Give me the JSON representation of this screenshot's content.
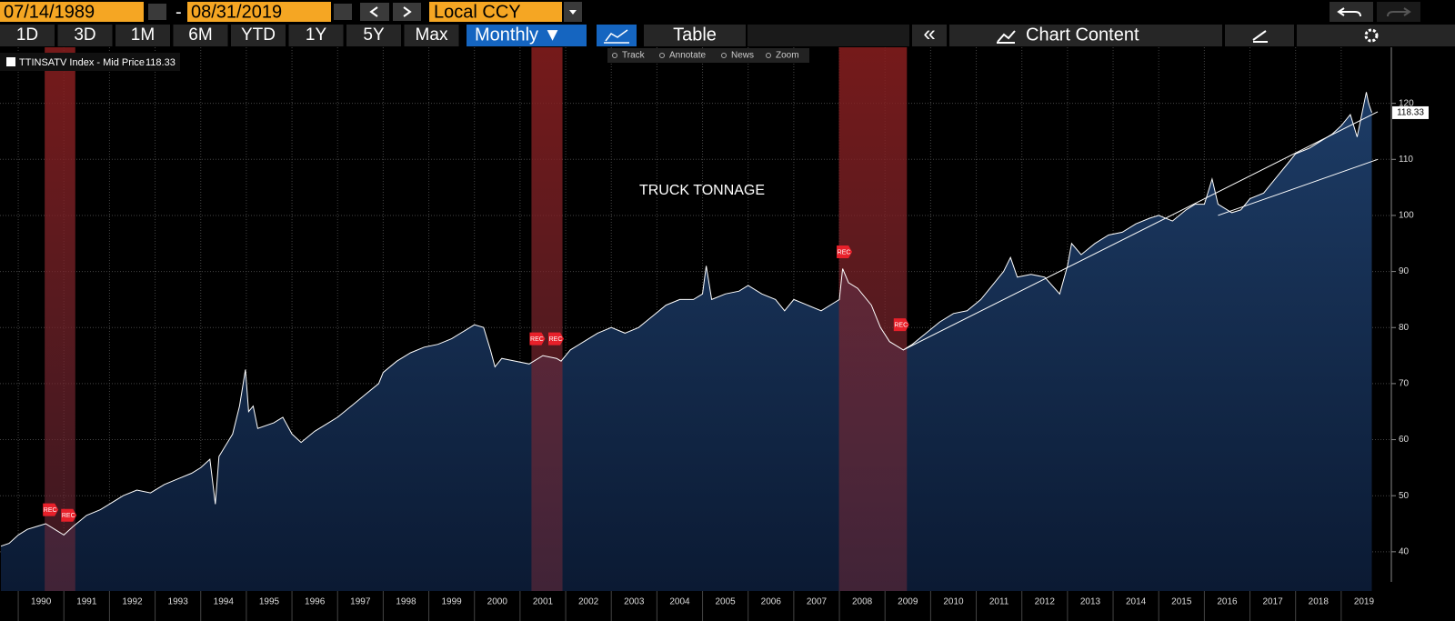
{
  "toolbar": {
    "start_date": "07/14/1989",
    "separator": "-",
    "end_date": "08/31/2019",
    "currency": "Local CCY",
    "ranges": [
      "1D",
      "3D",
      "1M",
      "6M",
      "YTD",
      "1Y",
      "5Y",
      "Max"
    ],
    "frequency": "Monthly ▼",
    "table": "Table",
    "collapse": "«",
    "chart_content": "Chart Content"
  },
  "chart_tools": [
    "Track",
    "Annotate",
    "News",
    "Zoom"
  ],
  "chart_data": {
    "type": "area",
    "title": "TRUCK TONNAGE",
    "x": [
      1989.62,
      1989.8,
      1990.0,
      1990.2,
      1990.4,
      1990.6,
      1990.8,
      1991.0,
      1991.2,
      1991.5,
      1991.8,
      1992.0,
      1992.3,
      1992.6,
      1992.9,
      1993.2,
      1993.5,
      1993.8,
      1994.0,
      1994.2,
      1994.32,
      1994.4,
      1994.7,
      1994.85,
      1994.98,
      1995.05,
      1995.15,
      1995.25,
      1995.6,
      1995.8,
      1996.0,
      1996.2,
      1996.5,
      1996.8,
      1997.0,
      1997.3,
      1997.6,
      1997.9,
      1998.0,
      1998.3,
      1998.6,
      1998.9,
      1999.2,
      1999.5,
      1999.8,
      2000.0,
      2000.2,
      2000.35,
      2000.45,
      2000.6,
      2000.9,
      2001.2,
      2001.5,
      2001.8,
      2001.9,
      2002.1,
      2002.4,
      2002.7,
      2003.0,
      2003.3,
      2003.6,
      2003.9,
      2004.2,
      2004.5,
      2004.8,
      2005.0,
      2005.08,
      2005.2,
      2005.5,
      2005.8,
      2006.0,
      2006.3,
      2006.6,
      2006.8,
      2007.0,
      2007.3,
      2007.6,
      2007.9,
      2008.0,
      2008.07,
      2008.2,
      2008.4,
      2008.7,
      2008.9,
      2009.1,
      2009.4,
      2009.6,
      2009.9,
      2010.2,
      2010.5,
      2010.8,
      2011.1,
      2011.4,
      2011.6,
      2011.75,
      2011.9,
      2012.2,
      2012.5,
      2012.83,
      2013.0,
      2013.09,
      2013.3,
      2013.6,
      2013.9,
      2014.2,
      2014.5,
      2014.8,
      2015.0,
      2015.3,
      2015.6,
      2015.8,
      2016.0,
      2016.17,
      2016.3,
      2016.6,
      2016.8,
      2017.0,
      2017.3,
      2017.6,
      2017.8,
      2018.0,
      2018.3,
      2018.6,
      2018.8,
      2019.0,
      2019.2,
      2019.35,
      2019.55,
      2019.6,
      2019.67
    ],
    "series": [
      {
        "name": "TTINSATV Index - Mid Price",
        "color": "#ffffff",
        "values": [
          41,
          41.5,
          43,
          44,
          44.5,
          45,
          44,
          43,
          44.5,
          46.5,
          47.5,
          48.5,
          50,
          51,
          50.5,
          52,
          53,
          54,
          55,
          56.5,
          48.5,
          57,
          61,
          66,
          72.5,
          65,
          66,
          62,
          63,
          64,
          61,
          59.5,
          61.5,
          63,
          64,
          66,
          68,
          70,
          72,
          74,
          75.5,
          76.5,
          77,
          78,
          79.5,
          80.5,
          80,
          76,
          73,
          74.5,
          74,
          73.5,
          75,
          74.5,
          74,
          76,
          77.5,
          79,
          80,
          79,
          80,
          82,
          84,
          85,
          85,
          86,
          91,
          85,
          86,
          86.5,
          87.5,
          86,
          85,
          83,
          85,
          84,
          83,
          84.5,
          85,
          90.5,
          88,
          87,
          84,
          80,
          77.5,
          76,
          77,
          79,
          81,
          82.5,
          83,
          85,
          88,
          90,
          92.5,
          89,
          89.5,
          89,
          86,
          91,
          95,
          93,
          95,
          96.5,
          97,
          98.5,
          99.5,
          100,
          99,
          101,
          102,
          102,
          106.5,
          102,
          100.5,
          101,
          103,
          104,
          107,
          109,
          111,
          112,
          113.5,
          114.5,
          116,
          118,
          114,
          122,
          120,
          118.33
        ]
      }
    ],
    "xlim": [
      1989.6,
      2019.8
    ],
    "ylim": [
      33,
      130
    ],
    "xticks": [
      1990,
      1991,
      1992,
      1993,
      1994,
      1995,
      1996,
      1997,
      1998,
      1999,
      2000,
      2001,
      2002,
      2003,
      2004,
      2005,
      2006,
      2007,
      2008,
      2009,
      2010,
      2011,
      2012,
      2013,
      2014,
      2015,
      2016,
      2017,
      2018,
      2019
    ],
    "yticks": [
      40,
      50,
      60,
      70,
      80,
      90,
      100,
      110,
      120
    ],
    "grid": true,
    "recessions": [
      [
        1990.58,
        1991.25
      ],
      [
        2001.25,
        2001.93
      ],
      [
        2007.99,
        2009.48
      ]
    ],
    "recession_label": "REC",
    "rec_markers": [
      {
        "x": 1990.7,
        "value": 47.5
      },
      {
        "x": 1991.1,
        "value": 46.5
      },
      {
        "x": 2001.37,
        "value": 78
      },
      {
        "x": 2001.78,
        "value": 78
      },
      {
        "x": 2008.1,
        "value": 93.5
      },
      {
        "x": 2009.35,
        "value": 80.5
      }
    ],
    "trendlines": [
      {
        "x": [
          2009.4,
          2019.8
        ],
        "values": [
          76,
          118.5
        ]
      },
      {
        "x": [
          2016.3,
          2019.8
        ],
        "values": [
          100,
          110
        ]
      }
    ]
  }
}
